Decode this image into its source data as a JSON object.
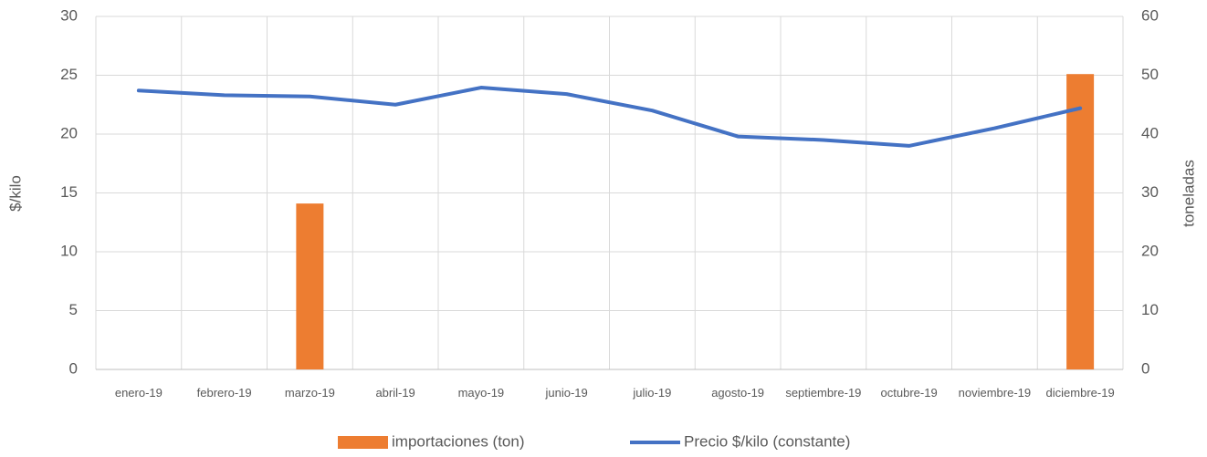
{
  "chart_data": {
    "type": "bar-line",
    "categories": [
      "enero-19",
      "febrero-19",
      "marzo-19",
      "abril-19",
      "mayo-19",
      "junio-19",
      "julio-19",
      "agosto-19",
      "septiembre-19",
      "octubre-19",
      "noviembre-19",
      "diciembre-19"
    ],
    "series": [
      {
        "name": "importaciones (ton)",
        "type": "bar",
        "axis": "y2",
        "color": "#ed7d31",
        "values": [
          0,
          0,
          28.2,
          0,
          0,
          0,
          0,
          0,
          0,
          0,
          0,
          50.2
        ]
      },
      {
        "name": "Precio $/kilo (constante)",
        "type": "line",
        "axis": "y",
        "color": "#4472c4",
        "values": [
          23.7,
          23.3,
          23.2,
          22.5,
          23.95,
          23.4,
          22.0,
          19.8,
          19.5,
          19.0,
          20.5,
          22.2
        ]
      }
    ],
    "y_label": "$/kilo",
    "y2_label": "toneladas",
    "ylim": [
      0,
      30
    ],
    "yticks": [
      0,
      5,
      10,
      15,
      20,
      25,
      30
    ],
    "y2lim": [
      0,
      60
    ],
    "y2ticks": [
      0,
      10,
      20,
      30,
      40,
      50,
      60
    ],
    "grid": true,
    "legend": "bottom"
  }
}
